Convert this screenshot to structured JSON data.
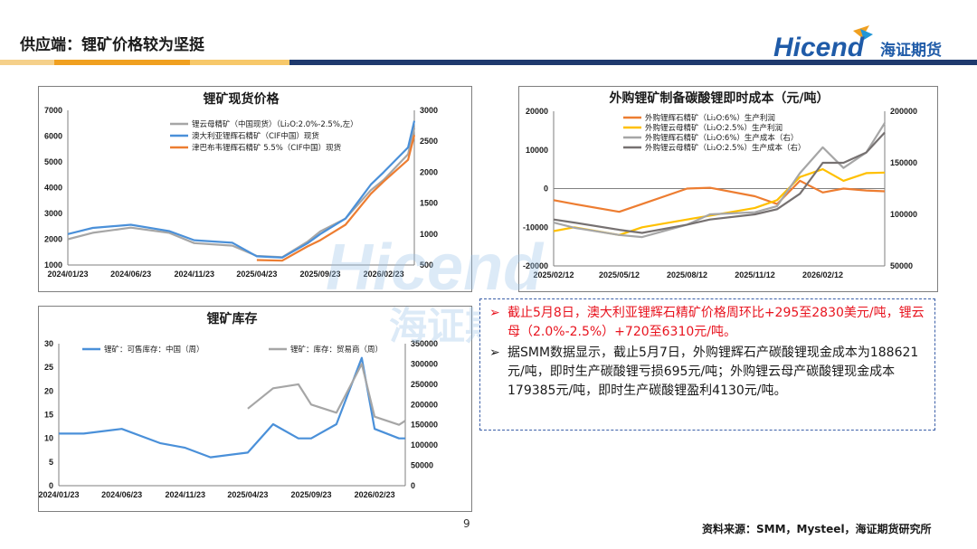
{
  "slide": {
    "title": "供应端：锂矿价格较为坚挺",
    "logo": {
      "text": "Hicend",
      "cn": "海证期货"
    },
    "page_number": "9",
    "source": "资料来源：SMM，Mysteel，海证期货研究所",
    "watermark": "Hicend 海证期货"
  },
  "colors": {
    "accent_orange": "#f0a020",
    "accent_navy": "#1f3a6e",
    "accent_blue": "#2196d6",
    "text_red": "#e8141f",
    "callout_border": "#3b5fa8"
  },
  "callout": {
    "bullets": [
      "截止5月8日，澳大利亚锂辉石精矿价格周环比+295至2830美元/吨，锂云母（2.0%-2.5%）+720至6310元/吨。",
      "据SMM数据显示，截止5月7日，外购锂辉石产碳酸锂现金成本为188621元/吨，即时生产碳酸锂亏损695元/吨；外购锂云母产碳酸锂现金成本179385元/吨，即时生产碳酸锂盈利4130元/吨。"
    ]
  },
  "chart_data": [
    {
      "type": "line",
      "title": "锂矿现货价格",
      "x_ticks": [
        "2024/01/23",
        "2024/06/23",
        "2024/11/23",
        "2025/04/23",
        "2025/09/23",
        "2026/02/23"
      ],
      "x": [
        "2024/01/23",
        "2024/03/23",
        "2024/06/23",
        "2024/09/23",
        "2024/11/23",
        "2025/02/23",
        "2025/04/23",
        "2025/06/23",
        "2025/08/23",
        "2025/09/23",
        "2025/11/23",
        "2026/01/23",
        "2026/02/23",
        "2026/04/23",
        "2026/05/08"
      ],
      "y_left": {
        "ticks": [
          1000,
          2000,
          3000,
          4000,
          5000,
          6000,
          7000
        ],
        "ylim": [
          1000,
          7000
        ]
      },
      "y_right": {
        "ticks": [
          500,
          1000,
          1500,
          2000,
          2500,
          3000
        ],
        "ylim": [
          500,
          3000
        ]
      },
      "legend_position": "top-right",
      "series": [
        {
          "name": "锂云母精矿（中国现货）（Li₂O:2.0%-2.5%,左）",
          "axis": "left",
          "color": "#a6a6a6",
          "values": [
            2000,
            2250,
            2450,
            2250,
            1850,
            1750,
            1350,
            1300,
            1900,
            2300,
            2800,
            3900,
            4300,
            5300,
            6310
          ]
        },
        {
          "name": "澳大利亚锂辉石精矿（CIF中国）现货",
          "axis": "right",
          "color": "#4a90d9",
          "values": [
            1000,
            1100,
            1150,
            1050,
            900,
            860,
            640,
            620,
            850,
            1000,
            1250,
            1800,
            2000,
            2400,
            2830
          ]
        },
        {
          "name": "津巴布韦锂辉石精矿 5.5%（CIF中国）现货",
          "axis": "right",
          "color": "#ed7d31",
          "values": [
            null,
            null,
            null,
            null,
            null,
            null,
            580,
            570,
            800,
            900,
            1150,
            1650,
            1850,
            2200,
            2600
          ]
        }
      ]
    },
    {
      "type": "line",
      "title": "外购锂矿制备碳酸锂即时成本（元/吨）",
      "x_ticks": [
        "2025/02/12",
        "2025/05/12",
        "2025/08/12",
        "2025/11/12",
        "2026/02/12"
      ],
      "x": [
        "2025/02/12",
        "2025/03/12",
        "2025/05/12",
        "2025/06/12",
        "2025/08/12",
        "2025/09/12",
        "2025/11/12",
        "2025/12/12",
        "2026/01/12",
        "2026/02/12",
        "2026/03/12",
        "2026/04/12",
        "2026/05/07"
      ],
      "y_left": {
        "ticks": [
          -20000,
          -10000,
          0,
          10000,
          20000
        ],
        "ylim": [
          -20000,
          20000
        ]
      },
      "y_right": {
        "ticks": [
          50000,
          100000,
          150000,
          200000
        ],
        "ylim": [
          50000,
          200000
        ]
      },
      "legend_position": "top-left",
      "series": [
        {
          "name": "外购锂辉石精矿（Li₂O:6%）生产利润",
          "axis": "left",
          "color": "#ed7d31",
          "values": [
            -3000,
            -4000,
            -6000,
            -4000,
            0,
            200,
            -2000,
            -4000,
            2000,
            -1000,
            0,
            -500,
            -695
          ]
        },
        {
          "name": "外购锂云母精矿（Li₂O:2.5%）生产利润",
          "axis": "left",
          "color": "#ffc000",
          "values": [
            -11000,
            -10000,
            -12000,
            -10000,
            -8000,
            -7000,
            -5000,
            -3000,
            3000,
            5000,
            2000,
            4000,
            4130
          ]
        },
        {
          "name": "外购锂辉石精矿（Li₂O:6%）生产成本（右）",
          "axis": "right",
          "color": "#a6a6a6",
          "values": [
            92000,
            87000,
            80000,
            78000,
            90000,
            100000,
            102000,
            108000,
            140000,
            165000,
            145000,
            160000,
            188621
          ]
        },
        {
          "name": "外购锂云母精矿（Li₂O:2.5%）生产成本（右）",
          "axis": "right",
          "color": "#767171",
          "values": [
            95000,
            92000,
            85000,
            82000,
            90000,
            95000,
            100000,
            105000,
            120000,
            150000,
            150000,
            160000,
            179385
          ]
        }
      ]
    },
    {
      "type": "line",
      "title": "锂矿库存",
      "x_ticks": [
        "2024/01/23",
        "2024/06/23",
        "2024/11/23",
        "2025/04/23",
        "2025/09/23",
        "2026/02/23"
      ],
      "x": [
        "2024/01/23",
        "2024/03/23",
        "2024/06/23",
        "2024/09/23",
        "2024/11/23",
        "2025/01/23",
        "2025/04/23",
        "2025/06/23",
        "2025/08/23",
        "2025/09/23",
        "2025/11/23",
        "2026/01/23",
        "2026/02/23",
        "2026/04/23",
        "2026/05/08"
      ],
      "y_left": {
        "ticks": [
          0,
          5,
          10,
          15,
          20,
          25,
          30
        ],
        "ylim": [
          0,
          30
        ]
      },
      "y_right": {
        "ticks": [
          0,
          50000,
          100000,
          150000,
          200000,
          250000,
          300000,
          350000
        ],
        "ylim": [
          0,
          350000
        ]
      },
      "legend_position": "top",
      "series": [
        {
          "name": "锂矿：可售库存：中国（周）",
          "axis": "left",
          "color": "#4a90d9",
          "values": [
            11,
            11,
            12,
            9,
            8,
            6,
            7,
            13,
            10,
            10,
            13,
            27,
            12,
            10,
            10
          ]
        },
        {
          "name": "锂矿：库存：贸易商（周）",
          "axis": "right",
          "color": "#a6a6a6",
          "values": [
            null,
            null,
            null,
            null,
            null,
            null,
            190000,
            240000,
            250000,
            200000,
            180000,
            300000,
            170000,
            150000,
            160000
          ]
        }
      ]
    }
  ]
}
